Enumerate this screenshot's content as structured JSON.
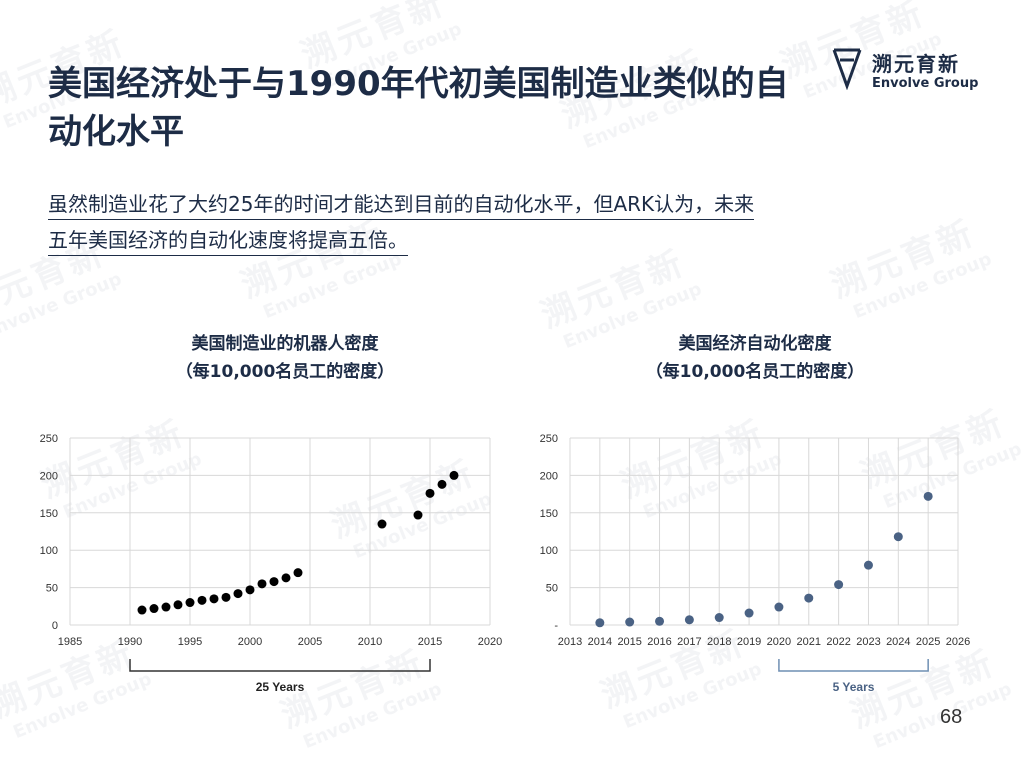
{
  "slide": {
    "title": "美国经济处于与1990年代初美国制造业类似的自动化水平",
    "subtitle_line1": "虽然制造业花了大约25年的时间才能达到目前的自动化水平，但ARK认为，未来",
    "subtitle_line2": "五年美国经济的自动化速度将提高五倍。",
    "page_number": "68"
  },
  "logo": {
    "cn": "溯元育新",
    "en": "Envolve Group"
  },
  "colors": {
    "text": "#1d2c46",
    "left_dots": "#000000",
    "right_dots": "#4a6284",
    "bracket_right": "#6f8fb3"
  },
  "chart_data": [
    {
      "type": "scatter",
      "title_line1": "美国制造业的机器人密度",
      "title_line2": "（每10,000名员工的密度）",
      "xlim": [
        1985,
        2020
      ],
      "ylim": [
        0,
        250
      ],
      "x_ticks": [
        "1985",
        "1990",
        "1995",
        "2000",
        "2005",
        "2010",
        "2015",
        "2020"
      ],
      "y_ticks": [
        "0",
        "50",
        "100",
        "150",
        "200",
        "250"
      ],
      "x": [
        1991,
        1992,
        1993,
        1994,
        1995,
        1996,
        1997,
        1998,
        1999,
        2000,
        2001,
        2002,
        2003,
        2004,
        2011,
        2014,
        2015,
        2016,
        2017
      ],
      "y": [
        20,
        22,
        24,
        27,
        30,
        33,
        35,
        37,
        42,
        47,
        55,
        58,
        63,
        70,
        135,
        147,
        176,
        188,
        200
      ],
      "grid": true,
      "bracket": {
        "from": 1990,
        "to": 2015,
        "label": "25 Years"
      }
    },
    {
      "type": "scatter",
      "title_line1": "美国经济自动化密度",
      "title_line2": "（每10,000名员工的密度）",
      "xlim": [
        2013,
        2026
      ],
      "ylim": [
        0,
        250
      ],
      "x_ticks": [
        "2013",
        "2014",
        "2015",
        "2016",
        "2017",
        "2018",
        "2019",
        "2020",
        "2021",
        "2022",
        "2023",
        "2024",
        "2025",
        "2026"
      ],
      "y_ticks": [
        "-",
        "50",
        "100",
        "150",
        "200",
        "250"
      ],
      "x": [
        2014,
        2015,
        2016,
        2017,
        2018,
        2019,
        2020,
        2021,
        2022,
        2023,
        2024,
        2025
      ],
      "y": [
        3,
        4,
        5,
        7,
        10,
        16,
        24,
        36,
        54,
        80,
        118,
        172
      ],
      "grid": true,
      "bracket": {
        "from": 2020,
        "to": 2025,
        "label": "5 Years"
      }
    }
  ]
}
